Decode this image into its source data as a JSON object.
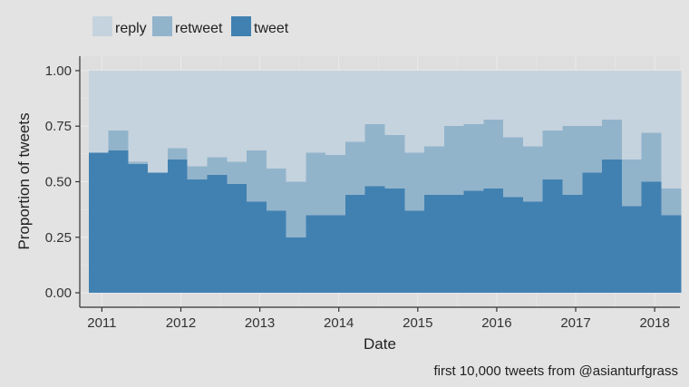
{
  "chart_data": {
    "type": "area",
    "title": "",
    "xlabel": "Date",
    "ylabel": "Proportion of tweets",
    "caption": "first 10,000 tweets from @asianturfgrass",
    "legend": {
      "position": "top-left",
      "order": [
        "reply",
        "retweet",
        "tweet"
      ]
    },
    "grid": true,
    "xlim": [
      2010.72,
      2018.32
    ],
    "ylim": [
      -0.065,
      1.065
    ],
    "x_ticks": [
      2011,
      2012,
      2013,
      2014,
      2015,
      2016,
      2017,
      2018
    ],
    "x_tick_labels": [
      "2011",
      "2012",
      "2013",
      "2014",
      "2015",
      "2016",
      "2017",
      "2018"
    ],
    "y_ticks": [
      0,
      0.25,
      0.5,
      0.75,
      1.0
    ],
    "y_tick_labels": [
      "0.00",
      "0.25",
      "0.50",
      "0.75",
      "1.00"
    ],
    "bin_start": 2010.833,
    "bin_width": 0.25,
    "colors": {
      "reply": "#c5d3de",
      "retweet": "#92b4cb",
      "tweet": "#4181b1"
    },
    "series": [
      {
        "name": "tweet",
        "values": [
          0.63,
          0.64,
          0.58,
          0.54,
          0.6,
          0.51,
          0.53,
          0.49,
          0.41,
          0.37,
          0.25,
          0.35,
          0.35,
          0.44,
          0.48,
          0.47,
          0.37,
          0.44,
          0.44,
          0.46,
          0.47,
          0.43,
          0.41,
          0.51,
          0.44,
          0.54,
          0.6,
          0.39,
          0.5,
          0.35
        ]
      },
      {
        "name": "retweet",
        "values": [
          0.0,
          0.09,
          0.01,
          0.0,
          0.05,
          0.06,
          0.08,
          0.1,
          0.23,
          0.19,
          0.25,
          0.28,
          0.27,
          0.24,
          0.28,
          0.24,
          0.26,
          0.22,
          0.31,
          0.3,
          0.31,
          0.27,
          0.25,
          0.22,
          0.31,
          0.21,
          0.18,
          0.21,
          0.22,
          0.12
        ]
      },
      {
        "name": "reply",
        "values": [
          0.37,
          0.27,
          0.41,
          0.46,
          0.35,
          0.43,
          0.39,
          0.41,
          0.36,
          0.44,
          0.5,
          0.37,
          0.38,
          0.32,
          0.24,
          0.29,
          0.37,
          0.34,
          0.25,
          0.24,
          0.22,
          0.3,
          0.34,
          0.27,
          0.25,
          0.25,
          0.22,
          0.4,
          0.28,
          0.53
        ]
      }
    ]
  }
}
